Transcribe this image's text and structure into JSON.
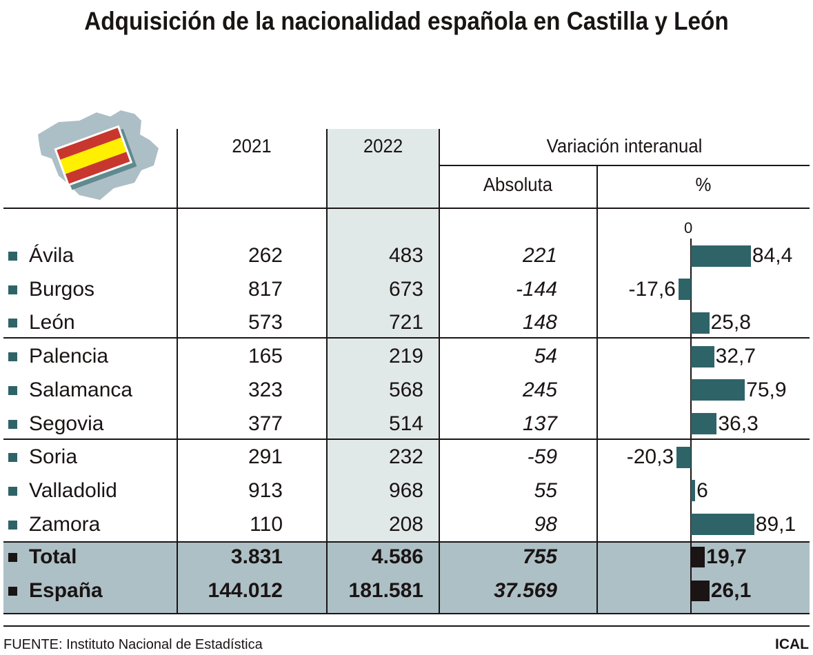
{
  "title": "Adquisición de la nacionalidad española en Castilla y León",
  "headers": {
    "y2021": "2021",
    "y2022": "2022",
    "variation": "Variación interanual",
    "absolute": "Absoluta",
    "percent": "%"
  },
  "axis_zero_label": "0",
  "colors": {
    "bar_region": "#2e6468",
    "bar_total": "#1a1414",
    "highlight_col": "#e1e9e8",
    "total_band": "#adc0c6",
    "map": "#adbfc6",
    "flag_red": "#c8372d",
    "flag_yellow": "#ffef00"
  },
  "chart_data": {
    "type": "table",
    "columns": [
      "",
      "2021",
      "2022",
      "Absoluta",
      "%"
    ],
    "rows": [
      {
        "name": "Ávila",
        "y2021": "262",
        "y2022": "483",
        "abs": "221",
        "pct": 84.4,
        "pct_label": "84,4"
      },
      {
        "name": "Burgos",
        "y2021": "817",
        "y2022": "673",
        "abs": "-144",
        "pct": -17.6,
        "pct_label": "-17,6"
      },
      {
        "name": "León",
        "y2021": "573",
        "y2022": "721",
        "abs": "148",
        "pct": 25.8,
        "pct_label": "25,8"
      },
      {
        "name": "Palencia",
        "y2021": "165",
        "y2022": "219",
        "abs": "54",
        "pct": 32.7,
        "pct_label": "32,7"
      },
      {
        "name": "Salamanca",
        "y2021": "323",
        "y2022": "568",
        "abs": "245",
        "pct": 75.9,
        "pct_label": "75,9"
      },
      {
        "name": "Segovia",
        "y2021": "377",
        "y2022": "514",
        "abs": "137",
        "pct": 36.3,
        "pct_label": "36,3"
      },
      {
        "name": "Soria",
        "y2021": "291",
        "y2022": "232",
        "abs": "-59",
        "pct": -20.3,
        "pct_label": "-20,3"
      },
      {
        "name": "Valladolid",
        "y2021": "913",
        "y2022": "968",
        "abs": "55",
        "pct": 6,
        "pct_label": "6"
      },
      {
        "name": "Zamora",
        "y2021": "110",
        "y2022": "208",
        "abs": "98",
        "pct": 89.1,
        "pct_label": "89,1"
      }
    ],
    "totals": [
      {
        "name": "Total",
        "y2021": "3.831",
        "y2022": "4.586",
        "abs": "755",
        "pct": 19.7,
        "pct_label": "19,7"
      },
      {
        "name": "España",
        "y2021": "144.012",
        "y2022": "181.581",
        "abs": "37.569",
        "pct": 26.1,
        "pct_label": "26,1"
      }
    ]
  },
  "footer": {
    "source": "FUENTE: Instituto Nacional de Estadística",
    "credit": "ICAL"
  }
}
